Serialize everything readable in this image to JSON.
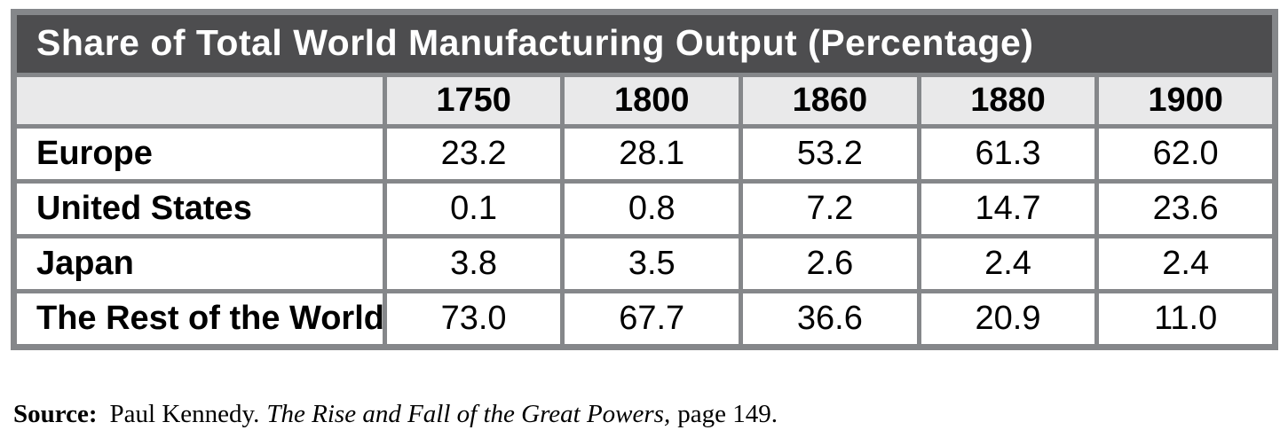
{
  "chart_data": {
    "type": "table",
    "title": "Share of Total World Manufacturing Output (Percentage)",
    "columns": [
      "1750",
      "1800",
      "1860",
      "1880",
      "1900"
    ],
    "rows": [
      {
        "label": "Europe",
        "values": [
          "23.2",
          "28.1",
          "53.2",
          "61.3",
          "62.0"
        ]
      },
      {
        "label": "United States",
        "values": [
          "0.1",
          "0.8",
          "7.2",
          "14.7",
          "23.6"
        ]
      },
      {
        "label": "Japan",
        "values": [
          "3.8",
          "3.5",
          "2.6",
          "2.4",
          "2.4"
        ]
      },
      {
        "label": "The Rest of the World",
        "values": [
          "73.0",
          "67.7",
          "36.6",
          "20.9",
          "11.0"
        ]
      }
    ],
    "units": "percent",
    "layout_hints": {
      "grid": "full gray borders",
      "header_position": "top",
      "label_column_position": "left"
    }
  },
  "source": {
    "label": "Source:",
    "author": "Paul Kennedy.",
    "work_title": "The Rise and Fall of the Great Powers,",
    "page": "page 149."
  },
  "colors": {
    "title_bar_bg": "#4d4d4f",
    "border": "#85878a",
    "header_bg": "#e9e9ea",
    "cell_bg": "#ffffff",
    "title_text": "#ffffff",
    "body_text": "#000000"
  }
}
